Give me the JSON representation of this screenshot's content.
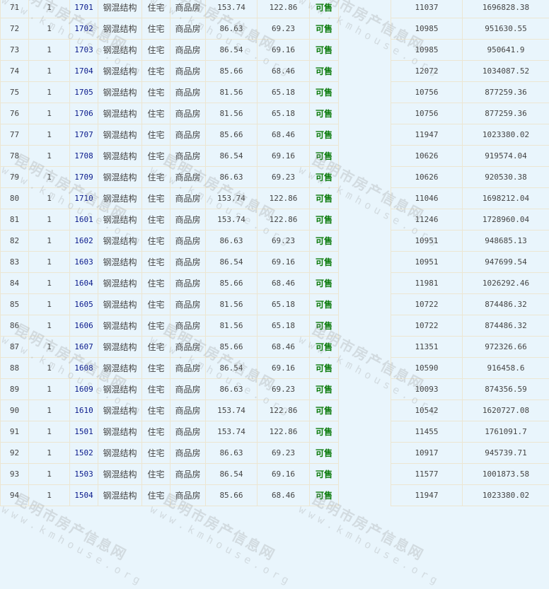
{
  "watermark": {
    "line1": "昆明市房产信息网",
    "line2": "www.kmhouse.org"
  },
  "colors": {
    "background": "#e9f5fc",
    "room_link": "#0a1a8c",
    "status": "#0a7a0a",
    "grid": "#ece6d2"
  },
  "rows": [
    {
      "index": "71",
      "floor": "1",
      "room": "1701",
      "structure": "钢混结构",
      "use": "住宅",
      "type": "商品房",
      "area_build": "153.74",
      "area_inner": "122.86",
      "status": "可售",
      "unit_price": "11037",
      "total": "1696828.38"
    },
    {
      "index": "72",
      "floor": "1",
      "room": "1702",
      "structure": "钢混结构",
      "use": "住宅",
      "type": "商品房",
      "area_build": "86.63",
      "area_inner": "69.23",
      "status": "可售",
      "unit_price": "10985",
      "total": "951630.55"
    },
    {
      "index": "73",
      "floor": "1",
      "room": "1703",
      "structure": "钢混结构",
      "use": "住宅",
      "type": "商品房",
      "area_build": "86.54",
      "area_inner": "69.16",
      "status": "可售",
      "unit_price": "10985",
      "total": "950641.9"
    },
    {
      "index": "74",
      "floor": "1",
      "room": "1704",
      "structure": "钢混结构",
      "use": "住宅",
      "type": "商品房",
      "area_build": "85.66",
      "area_inner": "68.46",
      "status": "可售",
      "unit_price": "12072",
      "total": "1034087.52"
    },
    {
      "index": "75",
      "floor": "1",
      "room": "1705",
      "structure": "钢混结构",
      "use": "住宅",
      "type": "商品房",
      "area_build": "81.56",
      "area_inner": "65.18",
      "status": "可售",
      "unit_price": "10756",
      "total": "877259.36"
    },
    {
      "index": "76",
      "floor": "1",
      "room": "1706",
      "structure": "钢混结构",
      "use": "住宅",
      "type": "商品房",
      "area_build": "81.56",
      "area_inner": "65.18",
      "status": "可售",
      "unit_price": "10756",
      "total": "877259.36"
    },
    {
      "index": "77",
      "floor": "1",
      "room": "1707",
      "structure": "钢混结构",
      "use": "住宅",
      "type": "商品房",
      "area_build": "85.66",
      "area_inner": "68.46",
      "status": "可售",
      "unit_price": "11947",
      "total": "1023380.02"
    },
    {
      "index": "78",
      "floor": "1",
      "room": "1708",
      "structure": "钢混结构",
      "use": "住宅",
      "type": "商品房",
      "area_build": "86.54",
      "area_inner": "69.16",
      "status": "可售",
      "unit_price": "10626",
      "total": "919574.04"
    },
    {
      "index": "79",
      "floor": "1",
      "room": "1709",
      "structure": "钢混结构",
      "use": "住宅",
      "type": "商品房",
      "area_build": "86.63",
      "area_inner": "69.23",
      "status": "可售",
      "unit_price": "10626",
      "total": "920530.38"
    },
    {
      "index": "80",
      "floor": "1",
      "room": "1710",
      "structure": "钢混结构",
      "use": "住宅",
      "type": "商品房",
      "area_build": "153.74",
      "area_inner": "122.86",
      "status": "可售",
      "unit_price": "11046",
      "total": "1698212.04"
    },
    {
      "index": "81",
      "floor": "1",
      "room": "1601",
      "structure": "钢混结构",
      "use": "住宅",
      "type": "商品房",
      "area_build": "153.74",
      "area_inner": "122.86",
      "status": "可售",
      "unit_price": "11246",
      "total": "1728960.04"
    },
    {
      "index": "82",
      "floor": "1",
      "room": "1602",
      "structure": "钢混结构",
      "use": "住宅",
      "type": "商品房",
      "area_build": "86.63",
      "area_inner": "69.23",
      "status": "可售",
      "unit_price": "10951",
      "total": "948685.13"
    },
    {
      "index": "83",
      "floor": "1",
      "room": "1603",
      "structure": "钢混结构",
      "use": "住宅",
      "type": "商品房",
      "area_build": "86.54",
      "area_inner": "69.16",
      "status": "可售",
      "unit_price": "10951",
      "total": "947699.54"
    },
    {
      "index": "84",
      "floor": "1",
      "room": "1604",
      "structure": "钢混结构",
      "use": "住宅",
      "type": "商品房",
      "area_build": "85.66",
      "area_inner": "68.46",
      "status": "可售",
      "unit_price": "11981",
      "total": "1026292.46"
    },
    {
      "index": "85",
      "floor": "1",
      "room": "1605",
      "structure": "钢混结构",
      "use": "住宅",
      "type": "商品房",
      "area_build": "81.56",
      "area_inner": "65.18",
      "status": "可售",
      "unit_price": "10722",
      "total": "874486.32"
    },
    {
      "index": "86",
      "floor": "1",
      "room": "1606",
      "structure": "钢混结构",
      "use": "住宅",
      "type": "商品房",
      "area_build": "81.56",
      "area_inner": "65.18",
      "status": "可售",
      "unit_price": "10722",
      "total": "874486.32"
    },
    {
      "index": "87",
      "floor": "1",
      "room": "1607",
      "structure": "钢混结构",
      "use": "住宅",
      "type": "商品房",
      "area_build": "85.66",
      "area_inner": "68.46",
      "status": "可售",
      "unit_price": "11351",
      "total": "972326.66"
    },
    {
      "index": "88",
      "floor": "1",
      "room": "1608",
      "structure": "钢混结构",
      "use": "住宅",
      "type": "商品房",
      "area_build": "86.54",
      "area_inner": "69.16",
      "status": "可售",
      "unit_price": "10590",
      "total": "916458.6"
    },
    {
      "index": "89",
      "floor": "1",
      "room": "1609",
      "structure": "钢混结构",
      "use": "住宅",
      "type": "商品房",
      "area_build": "86.63",
      "area_inner": "69.23",
      "status": "可售",
      "unit_price": "10093",
      "total": "874356.59"
    },
    {
      "index": "90",
      "floor": "1",
      "room": "1610",
      "structure": "钢混结构",
      "use": "住宅",
      "type": "商品房",
      "area_build": "153.74",
      "area_inner": "122.86",
      "status": "可售",
      "unit_price": "10542",
      "total": "1620727.08"
    },
    {
      "index": "91",
      "floor": "1",
      "room": "1501",
      "structure": "钢混结构",
      "use": "住宅",
      "type": "商品房",
      "area_build": "153.74",
      "area_inner": "122.86",
      "status": "可售",
      "unit_price": "11455",
      "total": "1761091.7"
    },
    {
      "index": "92",
      "floor": "1",
      "room": "1502",
      "structure": "钢混结构",
      "use": "住宅",
      "type": "商品房",
      "area_build": "86.63",
      "area_inner": "69.23",
      "status": "可售",
      "unit_price": "10917",
      "total": "945739.71"
    },
    {
      "index": "93",
      "floor": "1",
      "room": "1503",
      "structure": "钢混结构",
      "use": "住宅",
      "type": "商品房",
      "area_build": "86.54",
      "area_inner": "69.16",
      "status": "可售",
      "unit_price": "11577",
      "total": "1001873.58"
    },
    {
      "index": "94",
      "floor": "1",
      "room": "1504",
      "structure": "钢混结构",
      "use": "住宅",
      "type": "商品房",
      "area_build": "85.66",
      "area_inner": "68.46",
      "status": "可售",
      "unit_price": "11947",
      "total": "1023380.02"
    }
  ]
}
